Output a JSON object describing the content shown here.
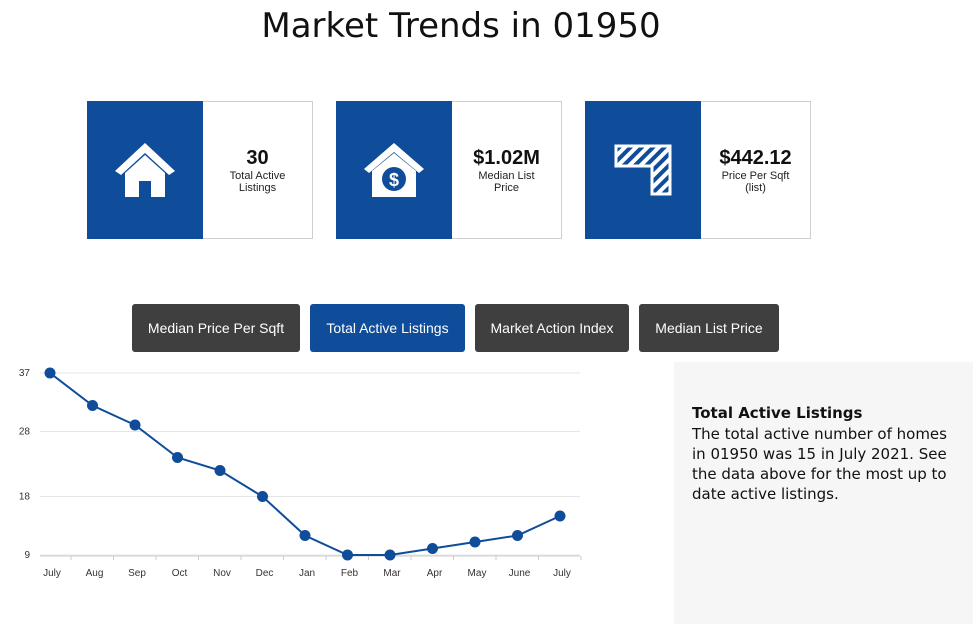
{
  "page": {
    "title": "Market Trends in 01950"
  },
  "stats": [
    {
      "value": "30",
      "label": "Total Active Listings",
      "icon": "house-icon"
    },
    {
      "value": "$1.02M",
      "label": "Median List Price",
      "icon": "house-dollar-icon"
    },
    {
      "value": "$442.12",
      "label": "Price Per Sqft (list)",
      "icon": "sqft-hatch-icon"
    }
  ],
  "tabs": [
    {
      "label": "Median Price Per Sqft",
      "active": false
    },
    {
      "label": "Total Active Listings",
      "active": true
    },
    {
      "label": "Market Action Index",
      "active": false
    },
    {
      "label": "Median List Price",
      "active": false
    }
  ],
  "info": {
    "title": "Total Active Listings",
    "body": "The total active number of homes in 01950 was 15 in July 2021. See the data above for the most up to date active listings."
  },
  "colors": {
    "brand": "#0f4c99",
    "button": "#3f3f3f",
    "panel": "#f6f6f6"
  },
  "chart_data": {
    "type": "line",
    "categories": [
      "July",
      "Aug",
      "Sep",
      "Oct",
      "Nov",
      "Dec",
      "Jan",
      "Feb",
      "Mar",
      "Apr",
      "May",
      "June",
      "July"
    ],
    "values": [
      37,
      32,
      29,
      24,
      22,
      18,
      12,
      9,
      9,
      10,
      11,
      12,
      15
    ],
    "yticks": [
      9,
      18,
      28,
      37
    ],
    "ylim": [
      7,
      39
    ],
    "grid": true,
    "legend": "none"
  }
}
